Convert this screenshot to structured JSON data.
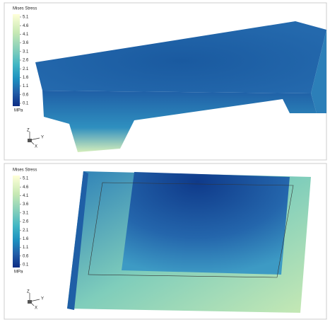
{
  "panels": [
    {
      "legend": {
        "title": "Mises Stress",
        "ticks": [
          5.1,
          4.6,
          4.1,
          3.6,
          3.1,
          2.6,
          2.1,
          1.6,
          1.1,
          0.6,
          0.1
        ],
        "unit": "MPa"
      },
      "triad": [
        "Z",
        "Y",
        "X"
      ]
    },
    {
      "legend": {
        "title": "Mises Stress",
        "ticks": [
          5.1,
          4.6,
          4.1,
          3.6,
          3.1,
          2.6,
          2.1,
          1.6,
          1.1,
          0.6,
          0.1
        ],
        "unit": "MPa"
      },
      "triad": [
        "Z",
        "Y",
        "X"
      ]
    }
  ]
}
